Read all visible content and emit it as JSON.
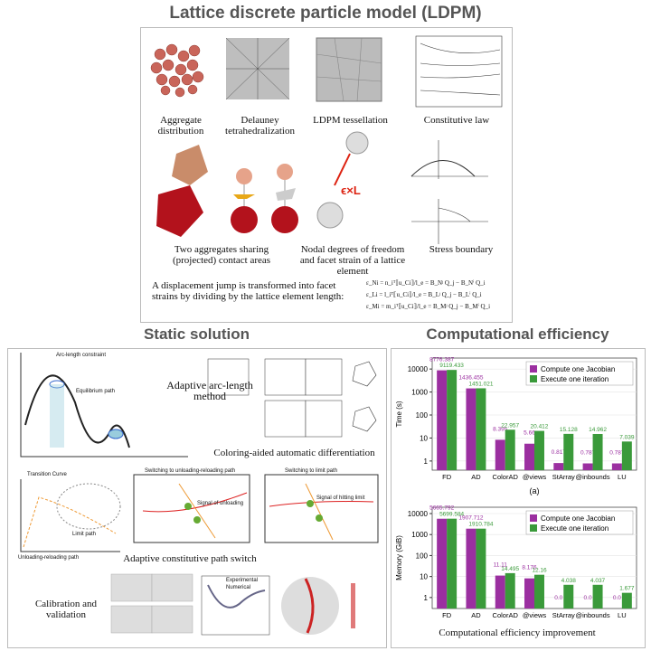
{
  "title": "Lattice discrete particle model (LDPM)",
  "ldpm": {
    "captions": [
      "Aggregate distribution",
      "Delauney tetrahedralization",
      "LDPM tessellation",
      "Constitutive law",
      "Two aggregates sharing (projected) contact areas",
      "Nodal degrees of freedom and facet strain of a lattice element",
      "Stress boundary"
    ],
    "jump_text": "A displacement jump is transformed into facet strains by dividing by the lattice element length:",
    "equations": [
      "ε_Ni = n_iᵀ⟦u_Ci⟧/l_e = B_Nʲ Q_j − B_Nⁱ Q_i",
      "ε_Li = l_iᵀ⟦u_Ci⟧/l_e = B_Lʲ Q_j − B_Lⁱ Q_i",
      "ε_Mi = m_iᵀ⟦u_Ci⟧/l_e = B_Mʲ Q_j − B_Mⁱ Q_i"
    ]
  },
  "static": {
    "title": "Static solution",
    "arc_caption": "Adaptive arc-length method",
    "ad_caption": "Coloring-aided automatic differentiation",
    "switch_caption": "Adaptive constitutive path switch",
    "calib_caption": "Calibration and validation",
    "labels": [
      "Arc-length constraint",
      "Equilibrium path",
      "Transition Curve",
      "Switching to unloading-reloading path",
      "Switching to limit path",
      "Signal of unloading",
      "Signal of hitting limit",
      "Limit path",
      "Unloading-reloading path",
      "Experimental",
      "Numerical"
    ]
  },
  "efficiency": {
    "title": "Computational efficiency",
    "caption": "Computational efficiency improvement"
  },
  "chart_data": [
    {
      "type": "bar",
      "y_label": "Time (s)",
      "subtitle": "(a)",
      "log_scale": true,
      "categories": [
        "FD",
        "AD",
        "ColorAD",
        "@views",
        "StArray",
        "@inbounds",
        "LU"
      ],
      "series": [
        {
          "name": "Compute one Jacobian",
          "color": "#9b2fa0",
          "values": [
            8776.387,
            1436.455,
            8.395,
            5.66,
            0.817,
            0.787,
            0.787
          ]
        },
        {
          "name": "Execute one iteration",
          "color": "#3a9a3a",
          "values": [
            9119.433,
            1451.021,
            22.957,
            20.412,
            15.128,
            14.962,
            7.039
          ]
        }
      ],
      "ylim": [
        0.4,
        30000
      ],
      "yticks": [
        1,
        10,
        100,
        1000,
        10000
      ],
      "legend": "top-right"
    },
    {
      "type": "bar",
      "y_label": "Memory (GiB)",
      "log_scale": true,
      "categories": [
        "FD",
        "AD",
        "ColorAD",
        "@views",
        "StArray",
        "@inbounds",
        "LU"
      ],
      "series": [
        {
          "name": "Compute one Jacobian",
          "color": "#9b2fa0",
          "values": [
            5665.792,
            1907.712,
            11.11,
            8.176,
            0,
            0,
            0
          ],
          "value_labels": [
            "5665.792",
            "1907.712",
            "11.11",
            "8.176",
            "0.0",
            "0.0",
            "0.0"
          ]
        },
        {
          "name": "Execute one iteration",
          "color": "#3a9a3a",
          "values": [
            5699.584,
            1910.784,
            14.495,
            12.16,
            4.038,
            4.037,
            1.677
          ]
        }
      ],
      "ylim": [
        0.3,
        20000
      ],
      "yticks": [
        1,
        10,
        100,
        1000,
        10000
      ],
      "legend": "top-right"
    }
  ]
}
